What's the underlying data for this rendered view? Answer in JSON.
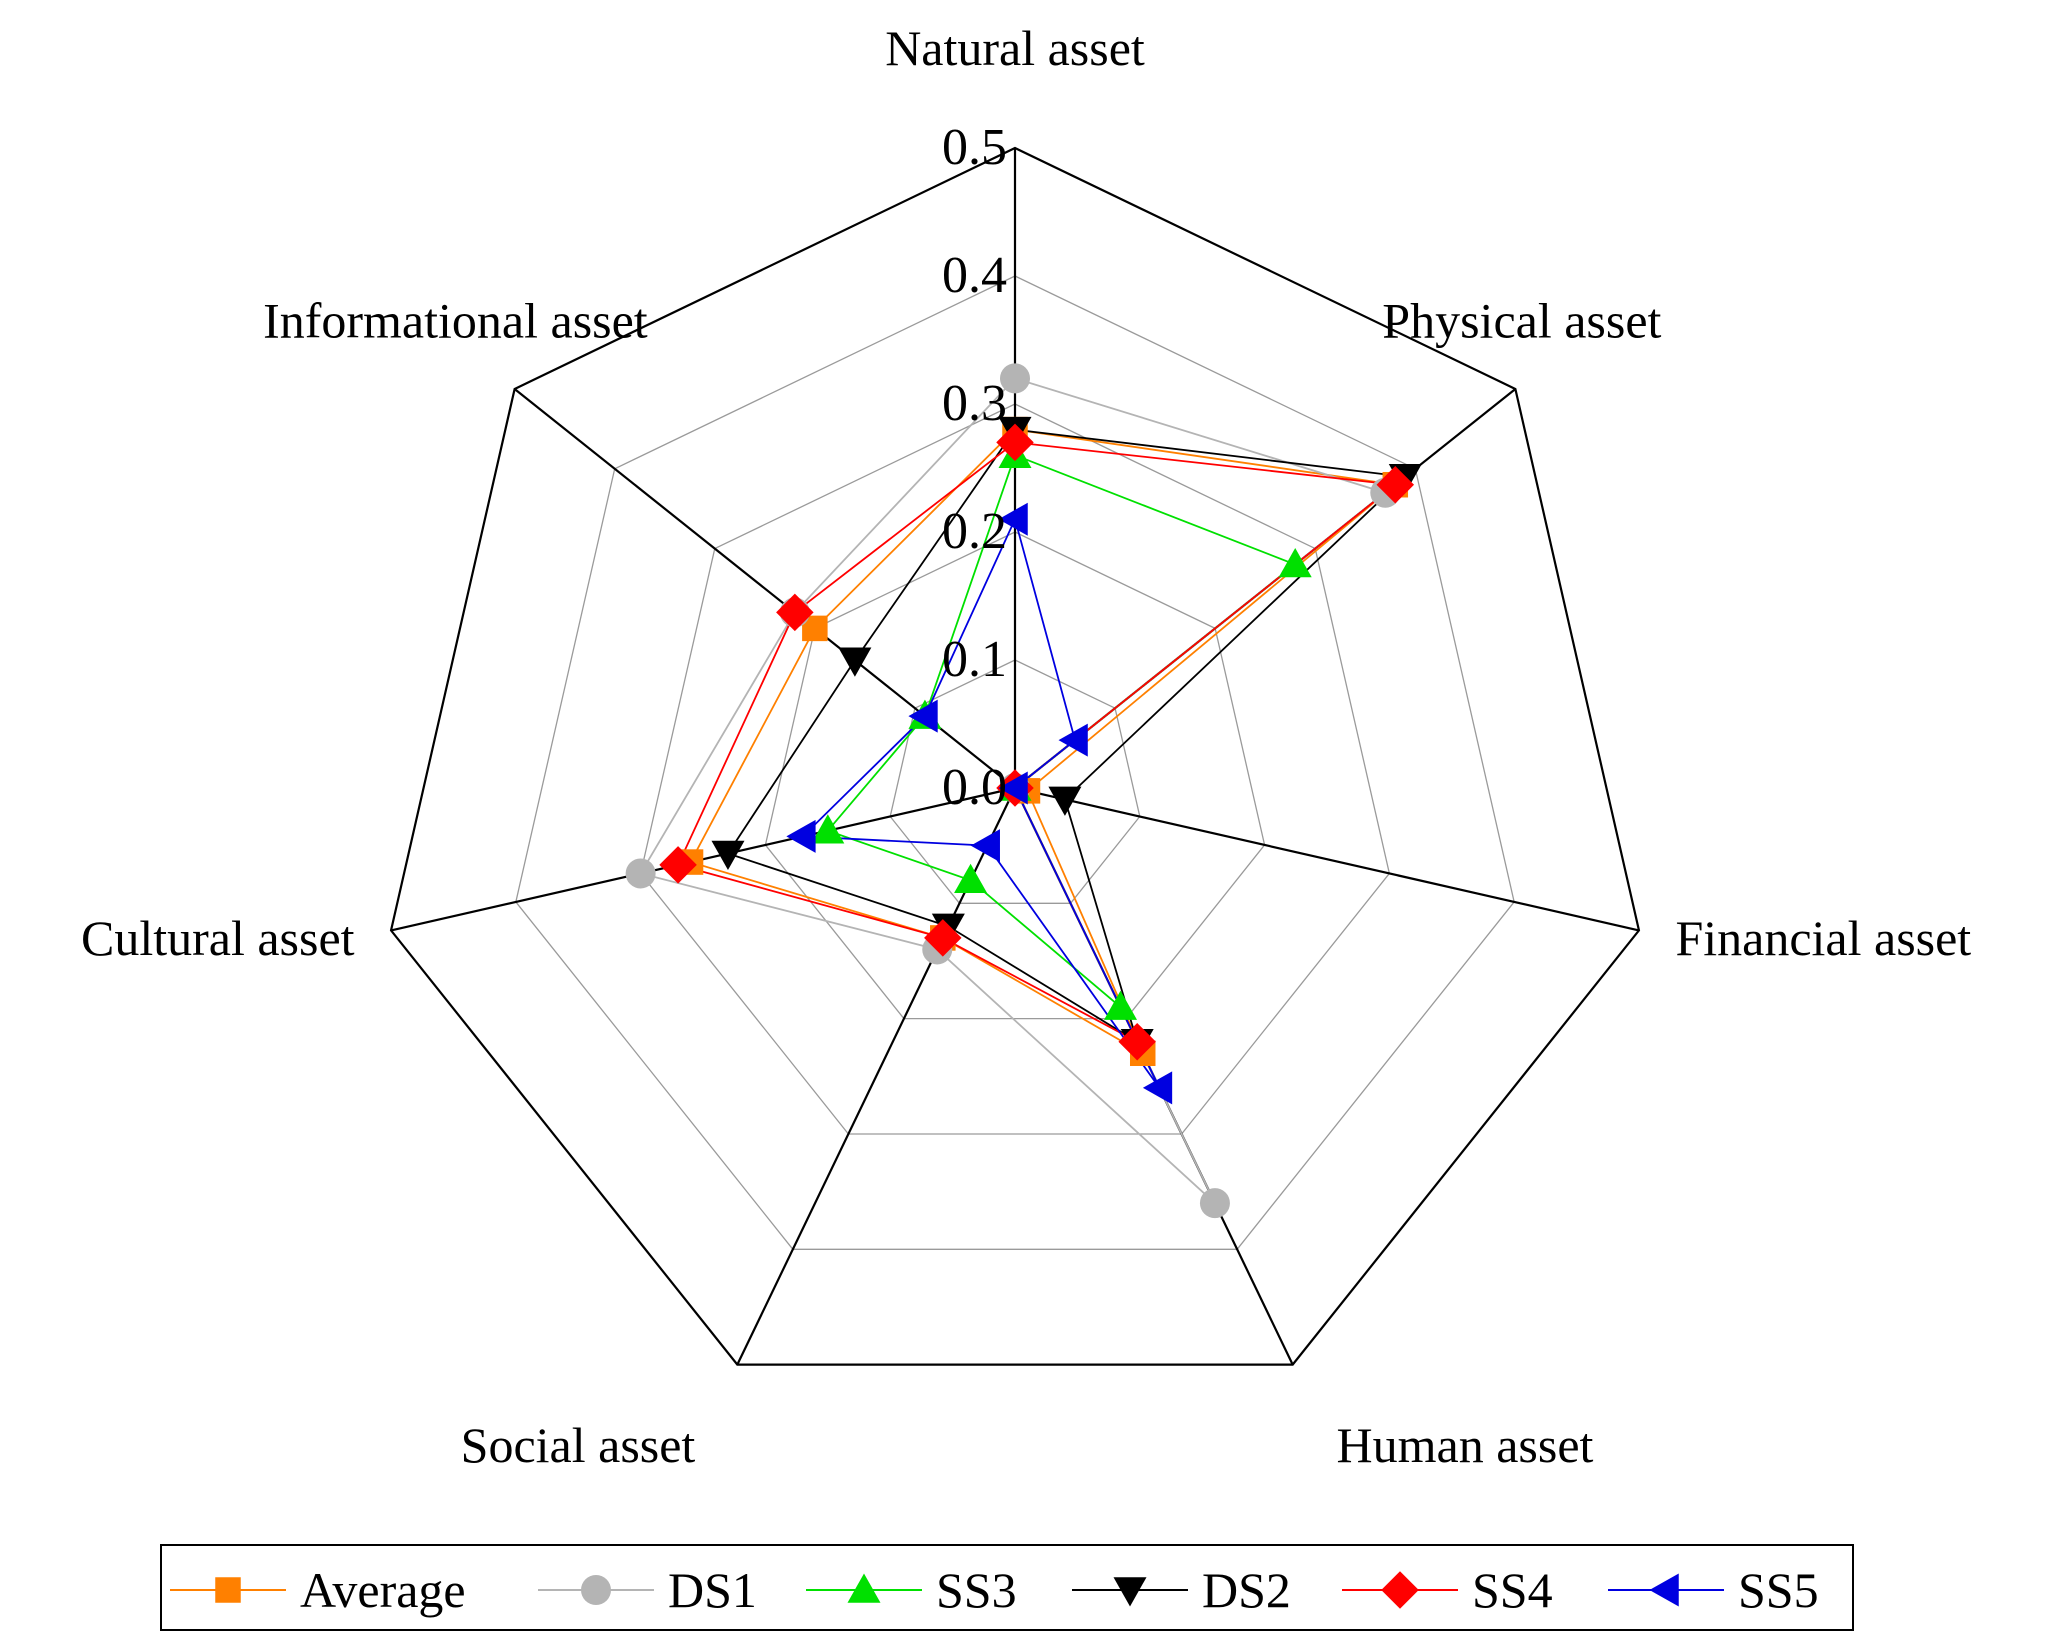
{
  "chart_data": {
    "type": "radar",
    "title": "",
    "axes": [
      "Natural asset",
      "Physical asset",
      "Financial asset",
      "Human asset",
      "Social asset",
      "Cultural asset",
      "Informational asset"
    ],
    "r_range": [
      0,
      0.5
    ],
    "r_ticks": [
      "0.0",
      "0.1",
      "0.2",
      "0.3",
      "0.4",
      "0.5"
    ],
    "legend_position": "bottom",
    "series": [
      {
        "name": "Average",
        "color": "#ff8000",
        "marker": "square",
        "values": [
          0.28,
          0.38,
          0.01,
          0.23,
          0.13,
          0.26,
          0.2
        ]
      },
      {
        "name": "DS1",
        "color": "#b4b4b4",
        "marker": "circle",
        "values": [
          0.32,
          0.37,
          0.0,
          0.36,
          0.14,
          0.3,
          0.22
        ]
      },
      {
        "name": "SS3",
        "color": "#00e000",
        "marker": "triangle-up",
        "values": [
          0.26,
          0.28,
          0.0,
          0.19,
          0.08,
          0.15,
          0.09
        ]
      },
      {
        "name": "DS2",
        "color": "#000000",
        "marker": "triangle-down",
        "values": [
          0.28,
          0.39,
          0.04,
          0.22,
          0.12,
          0.23,
          0.16
        ]
      },
      {
        "name": "SS4",
        "color": "#ff0000",
        "marker": "diamond",
        "values": [
          0.27,
          0.38,
          0.0,
          0.22,
          0.13,
          0.27,
          0.22
        ]
      },
      {
        "name": "SS5",
        "color": "#0000e0",
        "marker": "triangle-left",
        "values": [
          0.21,
          0.06,
          0.0,
          0.26,
          0.05,
          0.17,
          0.09
        ]
      }
    ]
  }
}
